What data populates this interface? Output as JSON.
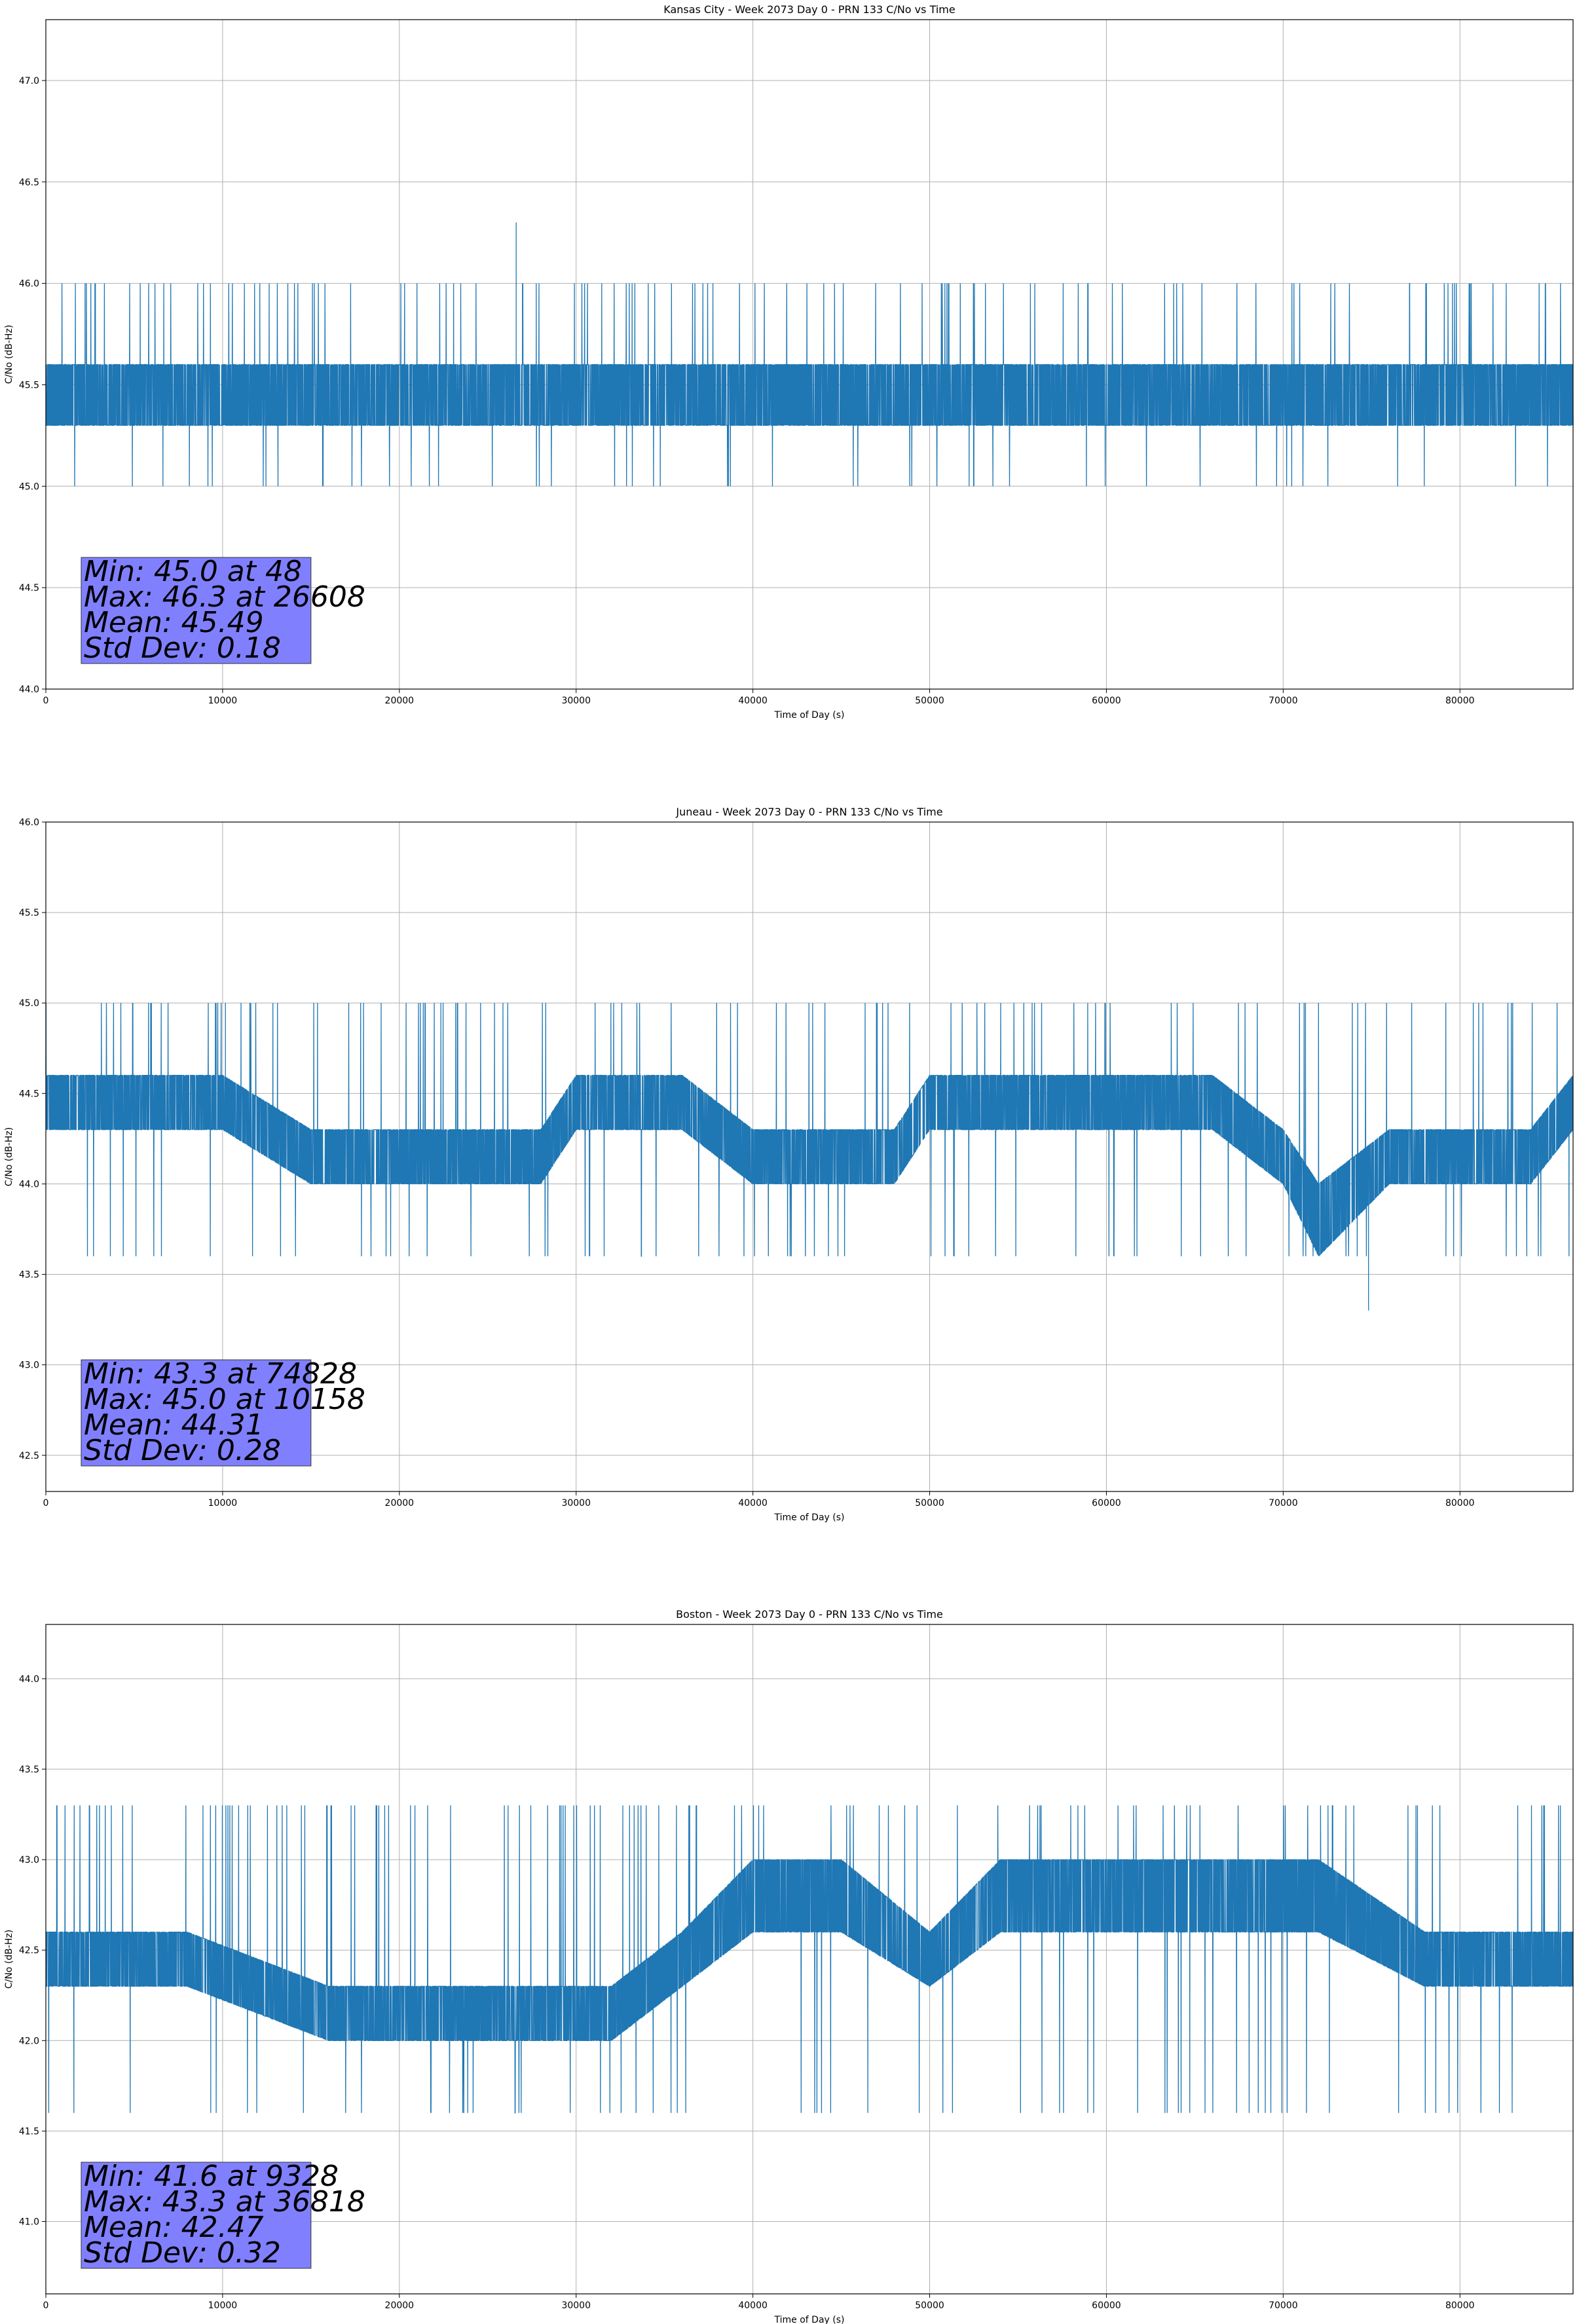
{
  "chart_data": [
    {
      "type": "line",
      "title": "Kansas City - Week 2073 Day 0 - PRN 133 C/No vs Time",
      "xlabel": "Time of Day (s)",
      "ylabel": "C/No (dB-Hz)",
      "xlim": [
        0,
        86400
      ],
      "ylim": [
        44.0,
        47.3
      ],
      "xticks": [
        0,
        10000,
        20000,
        30000,
        40000,
        50000,
        60000,
        70000,
        80000
      ],
      "yticks": [
        44.0,
        44.5,
        45.0,
        45.5,
        46.0,
        46.5,
        47.0
      ],
      "grid": true,
      "color": "#1f77b4",
      "series_profile": {
        "x": [
          0,
          6000,
          12000,
          18000,
          24000,
          30000,
          36000,
          42000,
          48000,
          54000,
          60000,
          66000,
          72000,
          78000,
          84000,
          86400
        ],
        "base_low": [
          45.3,
          45.3,
          45.3,
          45.3,
          45.3,
          45.3,
          45.3,
          45.3,
          45.3,
          45.3,
          45.3,
          45.3,
          45.3,
          45.3,
          45.3,
          45.3
        ],
        "base_high": [
          45.6,
          45.6,
          45.6,
          45.6,
          45.6,
          45.6,
          45.6,
          45.6,
          45.6,
          45.6,
          45.6,
          45.6,
          45.6,
          45.6,
          45.6,
          45.6
        ],
        "up_level": 46.0,
        "down_level": 45.0
      },
      "spikes": [
        {
          "x": 26608,
          "y": 46.3
        }
      ],
      "stats": [
        "Min: 45.0 at 48",
        "Max: 46.3 at 26608",
        "Mean: 45.49",
        "Std Dev: 0.18"
      ],
      "stats_box_color": "#8080ff"
    },
    {
      "type": "line",
      "title": "Juneau - Week 2073 Day 0 - PRN 133 C/No vs Time",
      "xlabel": "Time of Day (s)",
      "ylabel": "C/No (dB-Hz)",
      "xlim": [
        0,
        86400
      ],
      "ylim": [
        42.3,
        46.0
      ],
      "xticks": [
        0,
        10000,
        20000,
        30000,
        40000,
        50000,
        60000,
        70000,
        80000
      ],
      "yticks": [
        42.5,
        43.0,
        43.5,
        44.0,
        44.5,
        45.0,
        45.5,
        46.0
      ],
      "grid": true,
      "color": "#1f77b4",
      "series_profile": {
        "x": [
          0,
          10000,
          15000,
          22000,
          28000,
          30000,
          36000,
          40000,
          48000,
          50000,
          58000,
          66000,
          70000,
          72000,
          76000,
          80000,
          84000,
          86400
        ],
        "base_low": [
          44.3,
          44.3,
          44.0,
          44.0,
          44.0,
          44.3,
          44.3,
          44.0,
          44.0,
          44.3,
          44.3,
          44.3,
          44.0,
          43.6,
          44.0,
          44.0,
          44.0,
          44.3
        ],
        "base_high": [
          44.6,
          44.6,
          44.3,
          44.3,
          44.3,
          44.6,
          44.6,
          44.3,
          44.3,
          44.6,
          44.6,
          44.6,
          44.3,
          44.0,
          44.3,
          44.3,
          44.3,
          44.6
        ],
        "up_level": 45.0,
        "down_level": 43.6
      },
      "spikes": [
        {
          "x": 10158,
          "y": 45.0
        },
        {
          "x": 74828,
          "y": 43.3
        }
      ],
      "stats": [
        "Min: 43.3 at 74828",
        "Max: 45.0 at 10158",
        "Mean: 44.31",
        "Std Dev: 0.28"
      ],
      "stats_box_color": "#8080ff"
    },
    {
      "type": "line",
      "title": "Boston - Week 2073 Day 0 - PRN 133 C/No vs Time",
      "xlabel": "Time of Day (s)",
      "ylabel": "C/No (dB-Hz)",
      "xlim": [
        0,
        86400
      ],
      "ylim": [
        40.6,
        44.3
      ],
      "xticks": [
        0,
        10000,
        20000,
        30000,
        40000,
        50000,
        60000,
        70000,
        80000
      ],
      "yticks": [
        41.0,
        41.5,
        42.0,
        42.5,
        43.0,
        43.5,
        44.0
      ],
      "grid": true,
      "color": "#1f77b4",
      "series_profile": {
        "x": [
          0,
          8000,
          16000,
          24000,
          32000,
          36000,
          40000,
          45000,
          50000,
          54000,
          60000,
          66000,
          72000,
          78000,
          82000,
          86400
        ],
        "base_low": [
          42.3,
          42.3,
          42.0,
          42.0,
          42.0,
          42.3,
          42.6,
          42.6,
          42.3,
          42.6,
          42.6,
          42.6,
          42.6,
          42.3,
          42.3,
          42.3
        ],
        "base_high": [
          42.6,
          42.6,
          42.3,
          42.3,
          42.3,
          42.6,
          43.0,
          43.0,
          42.6,
          43.0,
          43.0,
          43.0,
          43.0,
          42.6,
          42.6,
          42.6
        ],
        "up_level": 43.3,
        "down_level": 41.6
      },
      "spikes": [
        {
          "x": 36818,
          "y": 43.3
        },
        {
          "x": 9328,
          "y": 41.6
        }
      ],
      "stats": [
        "Min: 41.6 at 9328",
        "Max: 43.3 at 36818",
        "Mean: 42.47",
        "Std Dev: 0.32"
      ],
      "stats_box_color": "#8080ff"
    }
  ]
}
